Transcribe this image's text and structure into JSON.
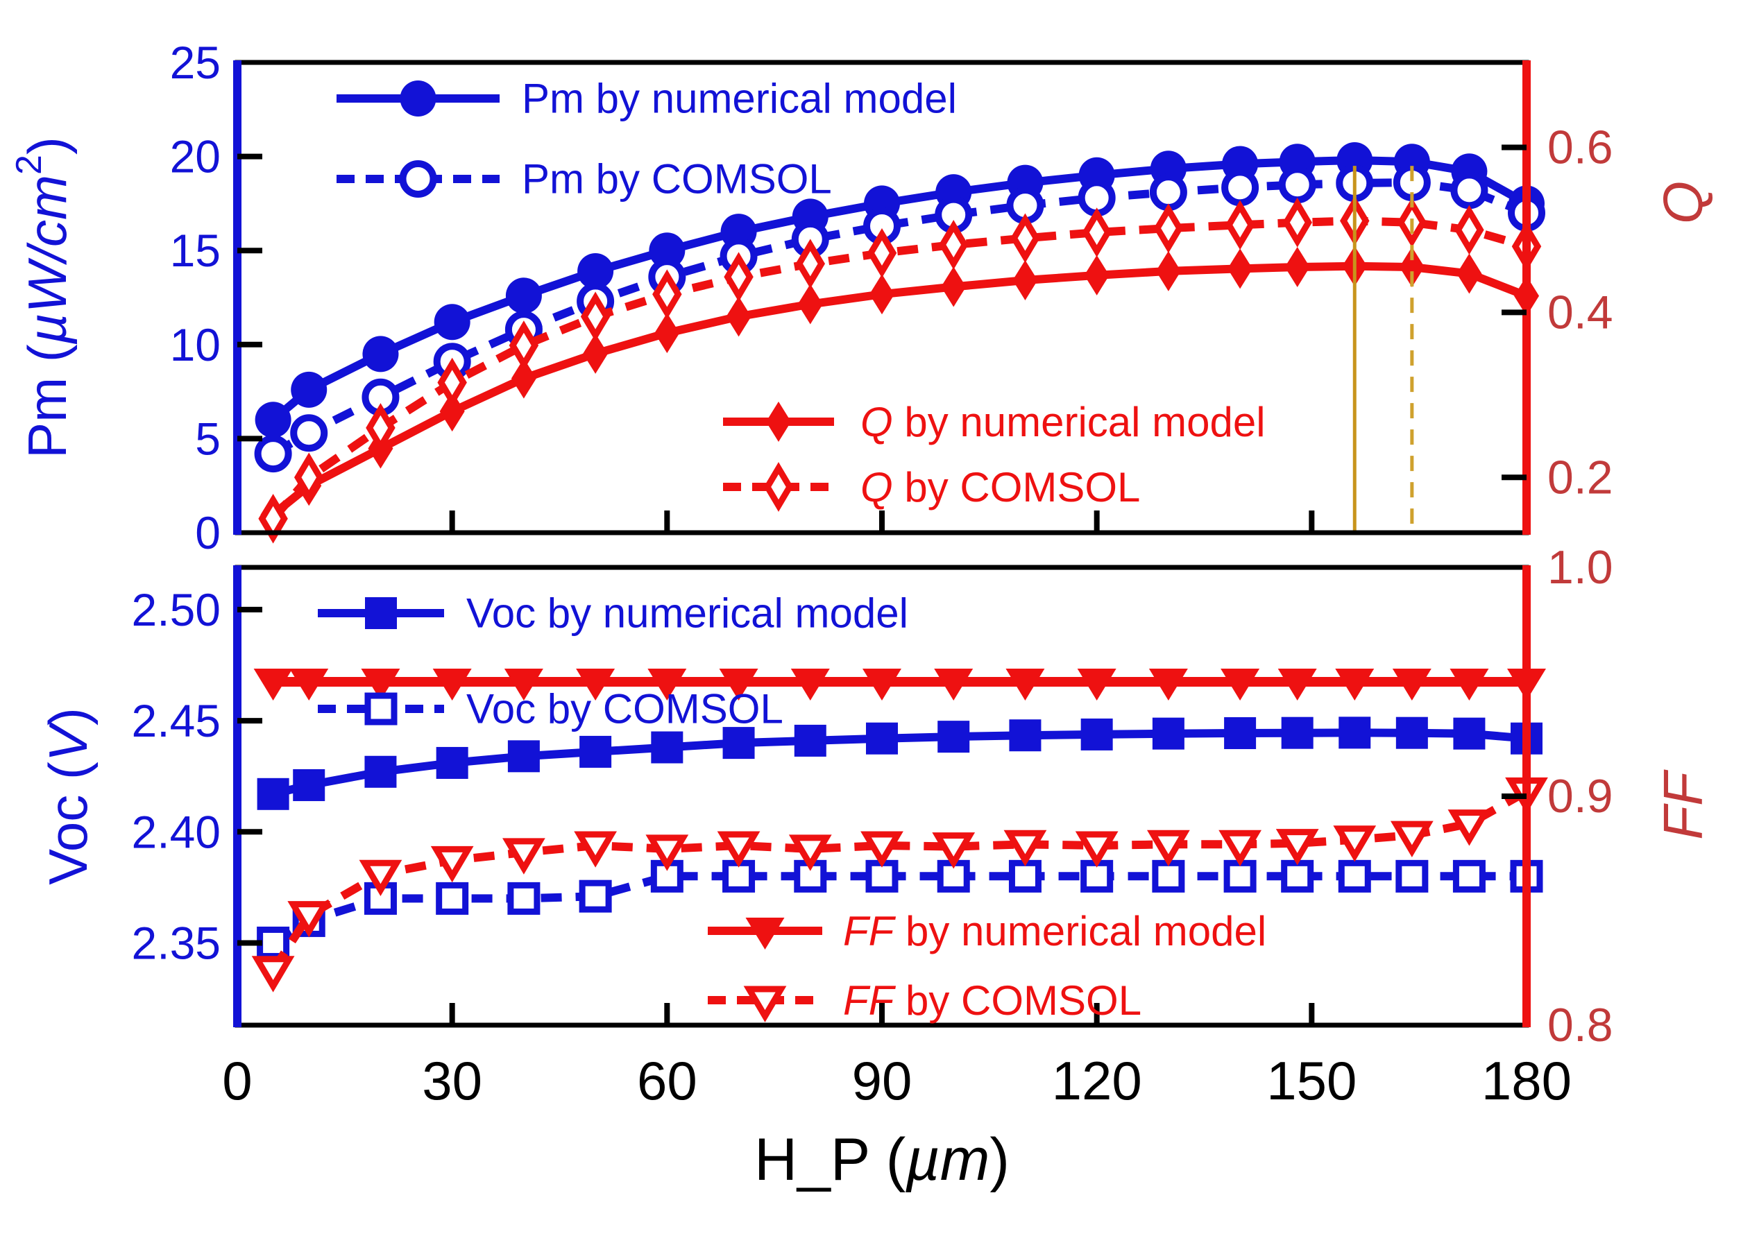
{
  "figure": {
    "background": "#ffffff",
    "frame_color": "#000000",
    "blue": "#1212d6",
    "red": "#ee1111",
    "right_label_color": "#c13a3a",
    "orange_solid": "#c8941c",
    "orange_dashed": "#cfa12d"
  },
  "xaxis": {
    "title": {
      "prefix": "H_P (",
      "italic": "µm",
      "suffix": ")"
    },
    "range": [
      0,
      180
    ],
    "ticks": [
      {
        "v": 0,
        "label": "0"
      },
      {
        "v": 30,
        "label": "30"
      },
      {
        "v": 60,
        "label": "60"
      },
      {
        "v": 90,
        "label": "90"
      },
      {
        "v": 120,
        "label": "120"
      },
      {
        "v": 150,
        "label": "150"
      },
      {
        "v": 180,
        "label": "180"
      }
    ]
  },
  "chart_data": [
    {
      "type": "line",
      "panel": "top",
      "x": [
        5,
        10,
        20,
        30,
        40,
        50,
        60,
        70,
        80,
        90,
        100,
        110,
        120,
        130,
        140,
        148,
        156,
        164,
        172,
        180
      ],
      "left_axis": {
        "title": {
          "prefix": "Pm (",
          "italic": "µW/cm",
          "sup": "2",
          "suffix": ")"
        },
        "color": "#1212d6",
        "range": [
          0,
          25
        ],
        "ticks": [
          {
            "v": 0,
            "label": "0"
          },
          {
            "v": 5,
            "label": "5"
          },
          {
            "v": 10,
            "label": "10"
          },
          {
            "v": 15,
            "label": "15"
          },
          {
            "v": 20,
            "label": "20"
          },
          {
            "v": 25,
            "label": "25"
          }
        ]
      },
      "right_axis": {
        "title": {
          "italic": "Q"
        },
        "color": "#c13a3a",
        "range": [
          0.133,
          0.703
        ],
        "ticks": [
          {
            "v": 0.2,
            "label": "0.2"
          },
          {
            "v": 0.4,
            "label": "0.4"
          },
          {
            "v": 0.6,
            "label": "0.6"
          }
        ]
      },
      "series": [
        {
          "name": "pm-numerical",
          "label": "Pm by numerical model",
          "axis": "left",
          "color": "#1212d6",
          "line": "solid",
          "marker": "circle",
          "values": [
            6.0,
            7.6,
            9.5,
            11.2,
            12.6,
            13.9,
            15.0,
            16.0,
            16.8,
            17.5,
            18.1,
            18.6,
            19.0,
            19.35,
            19.6,
            19.72,
            19.8,
            19.72,
            19.2,
            17.5
          ]
        },
        {
          "name": "pm-comsol",
          "label": "Pm by COMSOL",
          "axis": "left",
          "color": "#1212d6",
          "line": "dashed",
          "marker": "circle-open",
          "values": [
            4.2,
            5.3,
            7.2,
            9.1,
            10.8,
            12.3,
            13.6,
            14.7,
            15.6,
            16.3,
            16.9,
            17.4,
            17.8,
            18.1,
            18.35,
            18.5,
            18.58,
            18.62,
            18.2,
            17.0
          ]
        },
        {
          "name": "q-numerical",
          "label": "Q by numerical model",
          "italic_prefix": "Q",
          "axis": "right",
          "color": "#ee1111",
          "line": "solid",
          "marker": "diamond",
          "values": [
            0.155,
            0.19,
            0.235,
            0.28,
            0.32,
            0.35,
            0.375,
            0.395,
            0.41,
            0.422,
            0.431,
            0.439,
            0.445,
            0.45,
            0.453,
            0.455,
            0.456,
            0.455,
            0.447,
            0.42
          ]
        },
        {
          "name": "q-comsol",
          "label": "Q by COMSOL",
          "italic_prefix": "Q",
          "axis": "right",
          "color": "#ee1111",
          "line": "dashed",
          "marker": "diamond-open",
          "values": [
            0.15,
            0.2,
            0.26,
            0.315,
            0.36,
            0.395,
            0.422,
            0.443,
            0.459,
            0.472,
            0.482,
            0.49,
            0.497,
            0.502,
            0.506,
            0.509,
            0.511,
            0.509,
            0.5,
            0.48
          ]
        }
      ],
      "annotations": [
        {
          "x": 156,
          "style": "solid",
          "color": "#c8941c",
          "top_value": 19.5,
          "bottom_value": 0
        },
        {
          "x": 164,
          "style": "dashed",
          "color": "#cfa12d",
          "top_value": 19.5,
          "bottom_value": 0
        }
      ]
    },
    {
      "type": "line",
      "panel": "bottom",
      "x": [
        5,
        10,
        20,
        30,
        40,
        50,
        60,
        70,
        80,
        90,
        100,
        110,
        120,
        130,
        140,
        148,
        156,
        164,
        172,
        180
      ],
      "left_axis": {
        "title": {
          "prefix": "Voc (",
          "italic": "V",
          "suffix": ")"
        },
        "color": "#1212d6",
        "range": [
          2.313,
          2.519
        ],
        "ticks": [
          {
            "v": 2.35,
            "label": "2.35"
          },
          {
            "v": 2.4,
            "label": "2.40"
          },
          {
            "v": 2.45,
            "label": "2.45"
          },
          {
            "v": 2.5,
            "label": "2.50"
          }
        ]
      },
      "right_axis": {
        "title": {
          "italic": "FF"
        },
        "color": "#c13a3a",
        "range": [
          0.8,
          1.0
        ],
        "ticks": [
          {
            "v": 0.8,
            "label": "0.8"
          },
          {
            "v": 0.9,
            "label": "0.9"
          },
          {
            "v": 1.0,
            "label": "1.0"
          }
        ]
      },
      "series": [
        {
          "name": "voc-numerical",
          "label": "Voc by numerical model",
          "axis": "left",
          "color": "#1212d6",
          "line": "solid",
          "marker": "square",
          "values": [
            2.417,
            2.421,
            2.427,
            2.431,
            2.434,
            2.436,
            2.438,
            2.44,
            2.441,
            2.442,
            2.4428,
            2.4434,
            2.4438,
            2.4442,
            2.4444,
            2.4445,
            2.4446,
            2.4445,
            2.4442,
            2.442
          ]
        },
        {
          "name": "voc-comsol",
          "label": "Voc by COMSOL",
          "axis": "left",
          "color": "#1212d6",
          "line": "dashed",
          "marker": "square-open",
          "values": [
            2.35,
            2.36,
            2.37,
            2.37,
            2.37,
            2.371,
            2.38,
            2.38,
            2.38,
            2.38,
            2.38,
            2.38,
            2.38,
            2.38,
            2.38,
            2.38,
            2.38,
            2.38,
            2.38,
            2.38
          ]
        },
        {
          "name": "ff-numerical",
          "label": "FF by numerical model",
          "italic_prefix": "FF",
          "axis": "right",
          "color": "#ee1111",
          "line": "solid",
          "marker": "triangle-down",
          "values": [
            0.95,
            0.95,
            0.95,
            0.95,
            0.95,
            0.95,
            0.95,
            0.95,
            0.95,
            0.95,
            0.95,
            0.95,
            0.95,
            0.95,
            0.95,
            0.95,
            0.95,
            0.95,
            0.95,
            0.95
          ]
        },
        {
          "name": "ff-comsol",
          "label": "FF by COMSOL",
          "italic_prefix": "FF",
          "axis": "right",
          "color": "#ee1111",
          "line": "dashed",
          "marker": "triangle-down-open",
          "values": [
            0.824,
            0.848,
            0.866,
            0.872,
            0.8755,
            0.8785,
            0.877,
            0.8785,
            0.877,
            0.8785,
            0.878,
            0.879,
            0.8785,
            0.879,
            0.879,
            0.8795,
            0.881,
            0.883,
            0.888,
            0.902
          ]
        }
      ],
      "annotations": []
    }
  ]
}
